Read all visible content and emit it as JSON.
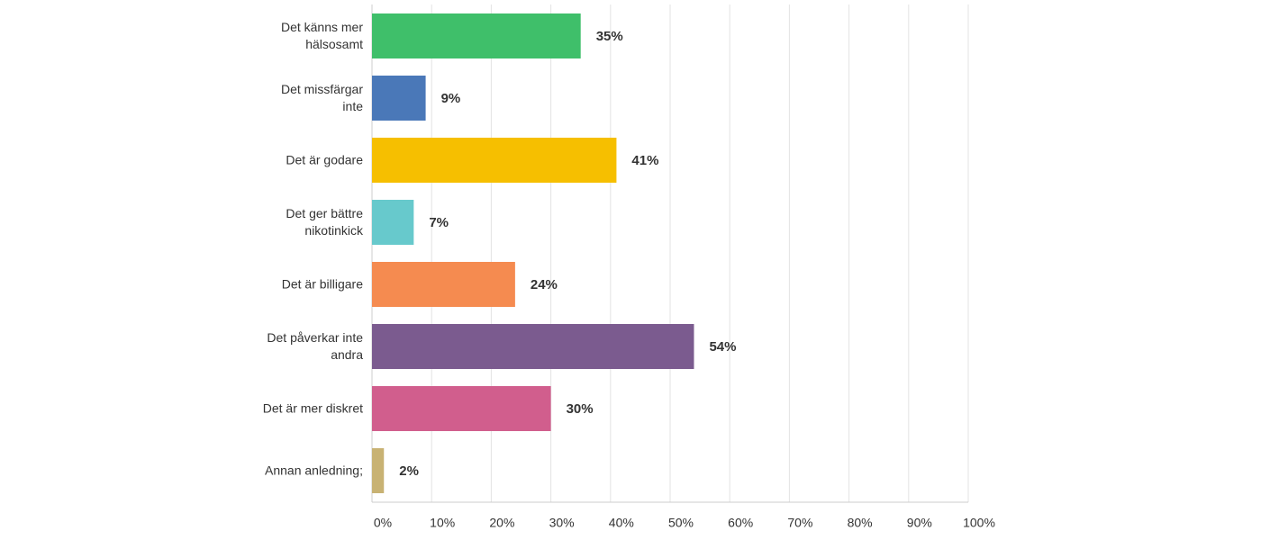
{
  "chart_data": {
    "type": "hbar",
    "categories": [
      "Det känns mer hälsosamt",
      "Det missfärgar inte",
      "Det är godare",
      "Det ger bättre nikotinkick",
      "Det är billigare",
      "Det påverkar inte andra",
      "Det är mer diskret",
      "Annan anledning;"
    ],
    "values": [
      35,
      9,
      41,
      7,
      24,
      54,
      30,
      2
    ],
    "value_labels": [
      "35%",
      "9%",
      "41%",
      "7%",
      "24%",
      "54%",
      "30%",
      "2%"
    ],
    "colors": [
      "#3fbf6a",
      "#4a78b8",
      "#f6bf00",
      "#67c9cc",
      "#f58b50",
      "#7b5b8f",
      "#d15e8d",
      "#c8b273"
    ],
    "xlim": [
      0,
      100
    ],
    "xticks": [
      {
        "value": 0,
        "label": "0%"
      },
      {
        "value": 10,
        "label": "10%"
      },
      {
        "value": 20,
        "label": "20%"
      },
      {
        "value": 30,
        "label": "30%"
      },
      {
        "value": 40,
        "label": "40%"
      },
      {
        "value": 50,
        "label": "50%"
      },
      {
        "value": 60,
        "label": "60%"
      },
      {
        "value": 70,
        "label": "70%"
      },
      {
        "value": 80,
        "label": "80%"
      },
      {
        "value": 90,
        "label": "90%"
      },
      {
        "value": 100,
        "label": "100%"
      }
    ],
    "grid": true
  }
}
